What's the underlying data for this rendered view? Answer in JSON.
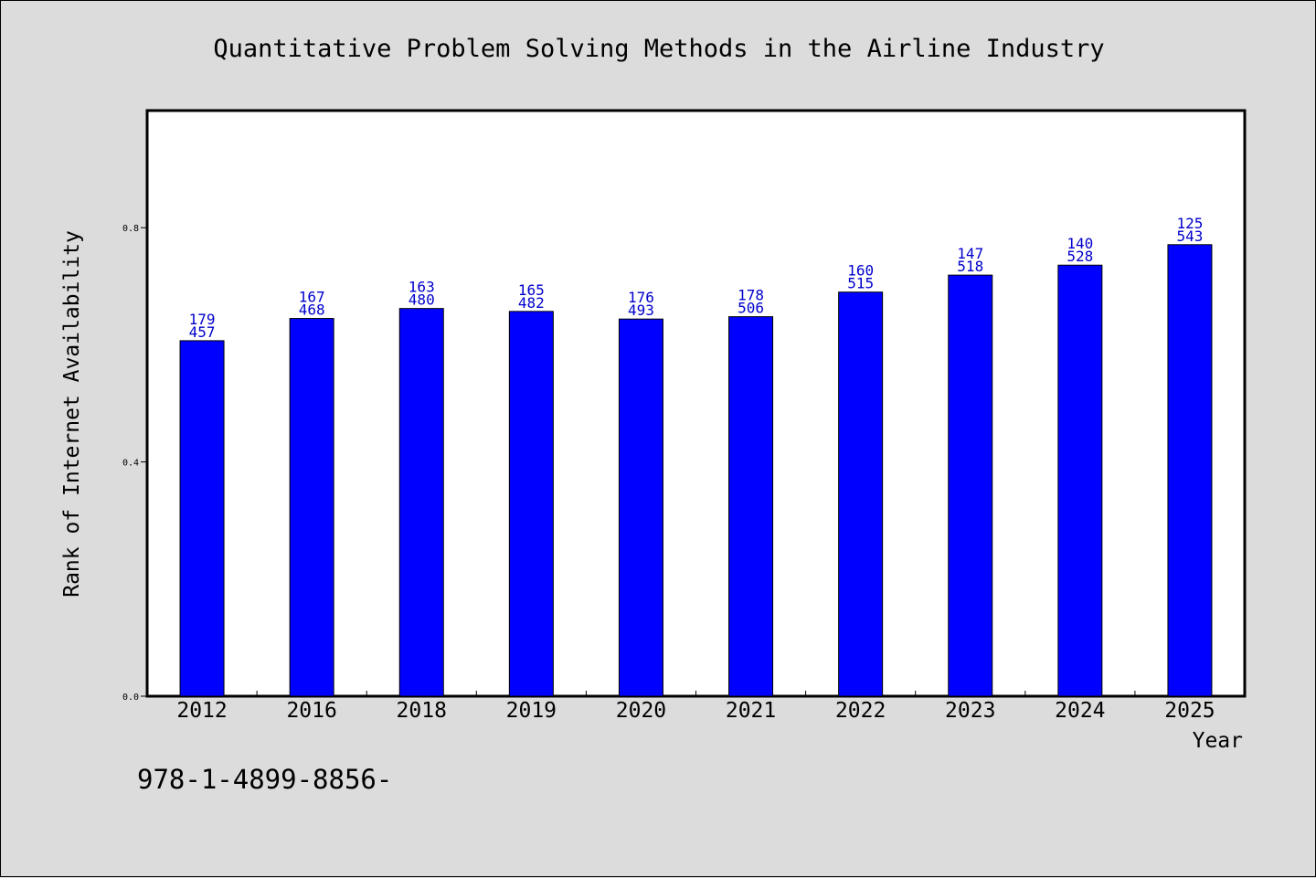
{
  "chart_data": {
    "type": "bar",
    "title": "Quantitative Problem Solving Methods in the Airline Industry",
    "xlabel": "Year",
    "ylabel": "Rank of Internet Availability",
    "ylim": [
      0,
      1.0
    ],
    "yticks": [
      0.0,
      0.4,
      0.8
    ],
    "ytick_labels": [
      "0.0",
      "0.4",
      "0.8"
    ],
    "categories": [
      "2012",
      "2016",
      "2018",
      "2019",
      "2020",
      "2021",
      "2022",
      "2023",
      "2024",
      "2025"
    ],
    "values": [
      0.607,
      0.645,
      0.662,
      0.657,
      0.644,
      0.648,
      0.69,
      0.719,
      0.736,
      0.771
    ],
    "label_top": [
      "179",
      "167",
      "163",
      "165",
      "176",
      "178",
      "160",
      "147",
      "140",
      "125"
    ],
    "label_bottom": [
      "457",
      "468",
      "480",
      "482",
      "493",
      "506",
      "515",
      "518",
      "528",
      "543"
    ],
    "grid": false,
    "bar_color": "#0000ff",
    "label_color": "#0000cc"
  },
  "footer_text": "978-1-4899-8856-"
}
